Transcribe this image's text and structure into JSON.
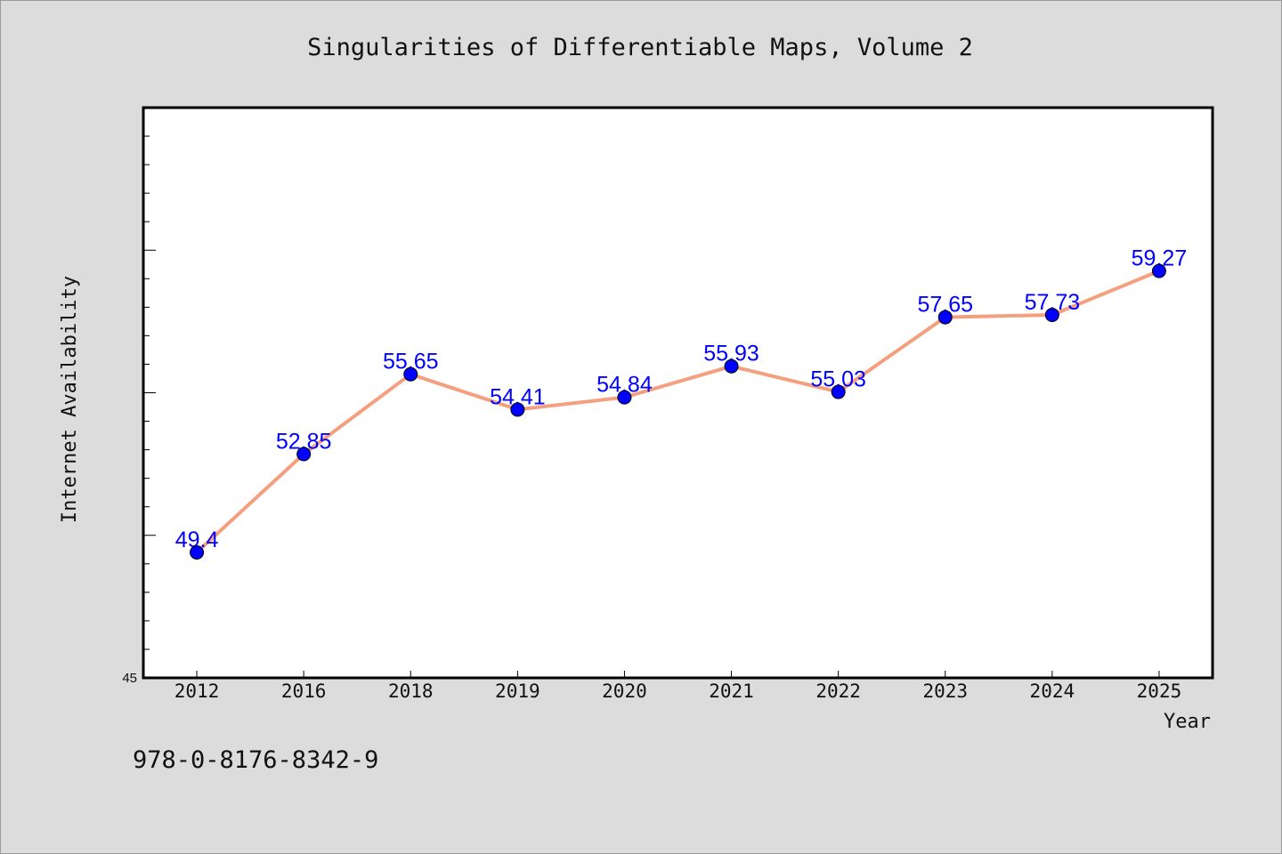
{
  "footer_text": "978-0-8176-8342-9",
  "colors": {
    "background": "#dcdcdc",
    "plot_background": "#ffffff",
    "line": "#f4a07f",
    "marker": "#0000ff",
    "data_label": "#0000ff"
  },
  "chart_data": {
    "type": "line",
    "title": "Singularities of Differentiable Maps, Volume 2",
    "xlabel": "Year",
    "ylabel": "Internet Availability",
    "categories": [
      "2012",
      "2016",
      "2018",
      "2019",
      "2020",
      "2021",
      "2022",
      "2023",
      "2024",
      "2025"
    ],
    "values": [
      49.4,
      52.85,
      55.65,
      54.41,
      54.84,
      55.93,
      55.03,
      57.65,
      57.73,
      59.27
    ],
    "data_labels": [
      "49.4",
      "52.85",
      "55.65",
      "54.41",
      "54.84",
      "55.93",
      "55.03",
      "57.65",
      "57.73",
      "59.27"
    ],
    "ylim": [
      45,
      65
    ],
    "yticks_labeled": [
      "45"
    ],
    "grid": false,
    "legend": "none"
  }
}
